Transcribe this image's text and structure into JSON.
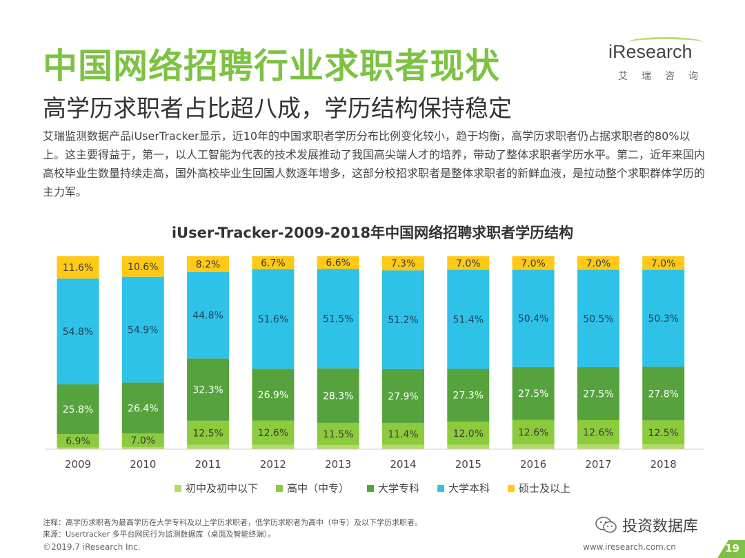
{
  "header": {
    "title": "中国网络招聘行业求职者现状",
    "subtitle": "高学历求职者占比超八成，学历结构保持稳定"
  },
  "logo": {
    "wordmark": "iResearch",
    "chinese": "艾瑞咨询"
  },
  "description": "艾瑞监测数据产品iUserTracker显示，近10年的中国求职者学历分布比例变化较小，趋于均衡，高学历求职者仍占据求职者的80%以上。这主要得益于，第一，以人工智能为代表的技术发展推动了我国高尖端人才的培养，带动了整体求职者学历水平。第二，近年来国内高校毕业生数量持续走高，国外高校毕业生回国人数逐年增多，这部分校招求职者是整体求职者的新鲜血液，是拉动整个求职群体学历的主力军。",
  "chart_data": {
    "type": "bar",
    "stacked": true,
    "title": "iUser-Tracker-2009-2018年中国网络招聘求职者学历结构",
    "categories": [
      "2009",
      "2010",
      "2011",
      "2012",
      "2013",
      "2014",
      "2015",
      "2016",
      "2017",
      "2018"
    ],
    "series": [
      {
        "name": "初中及初中以下",
        "color": "#8ccb3c",
        "values": [
          0.9,
          1.1,
          2.2,
          2.2,
          2.1,
          2.2,
          2.3,
          2.5,
          2.4,
          2.4
        ],
        "labels": [
          "",
          "",
          "",
          "",
          "",
          "",
          "",
          "",
          "",
          ""
        ]
      },
      {
        "name": "高中（中专）",
        "color": "#8ccb3c",
        "values": [
          6.9,
          7.0,
          12.5,
          12.6,
          11.5,
          11.4,
          12.0,
          12.6,
          12.6,
          12.5
        ],
        "labels": [
          "6.9%",
          "7.0%",
          "12.5%",
          "12.6%",
          "11.5%",
          "11.4%",
          "12.0%",
          "12.6%",
          "12.6%",
          "12.5%"
        ]
      },
      {
        "name": "大学专科",
        "color": "#56a33e",
        "values": [
          25.8,
          26.4,
          32.3,
          26.9,
          28.3,
          27.9,
          27.3,
          27.5,
          27.5,
          27.8
        ],
        "labels": [
          "25.8%",
          "26.4%",
          "32.3%",
          "26.9%",
          "28.3%",
          "27.9%",
          "27.3%",
          "27.5%",
          "27.5%",
          "27.8%"
        ]
      },
      {
        "name": "大学本科",
        "color": "#2ec2e8",
        "values": [
          54.8,
          54.9,
          44.8,
          51.6,
          51.5,
          51.2,
          51.4,
          50.4,
          50.5,
          50.3
        ],
        "labels": [
          "54.8%",
          "54.9%",
          "44.8%",
          "51.6%",
          "51.5%",
          "51.2%",
          "51.4%",
          "50.4%",
          "50.5%",
          "50.3%"
        ]
      },
      {
        "name": "硕士及以上",
        "color": "#ffc916",
        "values": [
          11.6,
          10.6,
          8.2,
          6.7,
          6.6,
          7.3,
          7.0,
          7.0,
          7.0,
          7.0
        ],
        "labels": [
          "11.6%",
          "10.6%",
          "8.2%",
          "6.7%",
          "6.6%",
          "7.3%",
          "7.0%",
          "7.0%",
          "7.0%",
          "7.0%"
        ]
      }
    ],
    "ylim": [
      0,
      100
    ],
    "legend_position": "bottom"
  },
  "legend": [
    {
      "label": "初中及初中以下",
      "color": "#b6d96b"
    },
    {
      "label": "高中（中专）",
      "color": "#8ccb3c"
    },
    {
      "label": "大学专科",
      "color": "#56a33e"
    },
    {
      "label": "大学本科",
      "color": "#2ec2e8"
    },
    {
      "label": "硕士及以上",
      "color": "#ffc916"
    }
  ],
  "notes": {
    "note": "注释：高学历求职者为最高学历在大学专科及以上学历求职者，低学历求职者为高中（中专）及以下学历求职者。",
    "source": "来源：Usertracker 多平台网民行为监测数据库（桌面及智能终端）。"
  },
  "footer": {
    "copyright": "©2019.7 iResearch Inc.",
    "website": "www.iresearch.com.cn",
    "page": "19"
  },
  "watermark": {
    "text": "投资数据库"
  }
}
